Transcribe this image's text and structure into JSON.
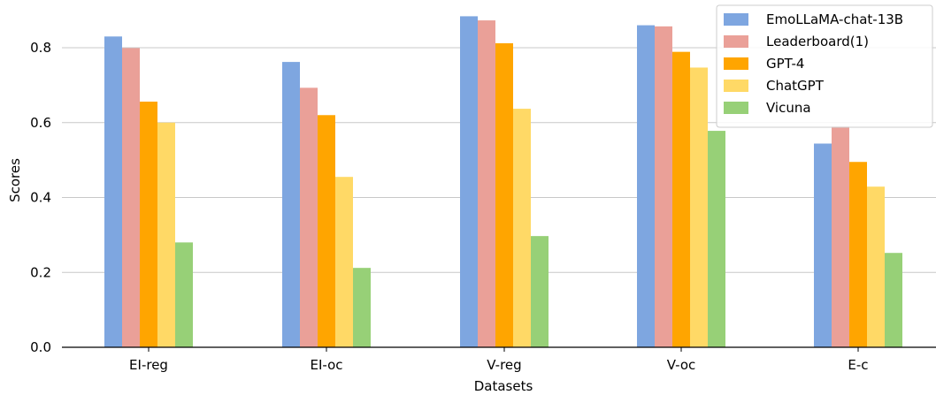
{
  "chart_data": {
    "type": "bar",
    "xlabel": "Datasets",
    "ylabel": "Scores",
    "ylim": [
      0,
      0.9
    ],
    "yticks": [
      0.0,
      0.2,
      0.4,
      0.6,
      0.8
    ],
    "ytick_labels": [
      "0.0",
      "0.2",
      "0.4",
      "0.6",
      "0.8"
    ],
    "grid": "horizontal",
    "legend_position": "top-right",
    "categories": [
      "EI-reg",
      "EI-oc",
      "V-reg",
      "V-oc",
      "E-c"
    ],
    "series": [
      {
        "name": "EmoLLaMA-chat-13B",
        "color": "#7ea6e0",
        "values": [
          0.83,
          0.762,
          0.884,
          0.86,
          0.544
        ]
      },
      {
        "name": "Leaderboard(1)",
        "color": "#eaa098",
        "values": [
          0.799,
          0.693,
          0.873,
          0.857,
          0.59
        ]
      },
      {
        "name": "GPT-4",
        "color": "#ffa500",
        "values": [
          0.656,
          0.62,
          0.812,
          0.789,
          0.495
        ]
      },
      {
        "name": "ChatGPT",
        "color": "#ffd966",
        "values": [
          0.6,
          0.455,
          0.637,
          0.747,
          0.429
        ]
      },
      {
        "name": "Vicuna",
        "color": "#97d077",
        "values": [
          0.28,
          0.212,
          0.297,
          0.578,
          0.252
        ]
      }
    ]
  }
}
